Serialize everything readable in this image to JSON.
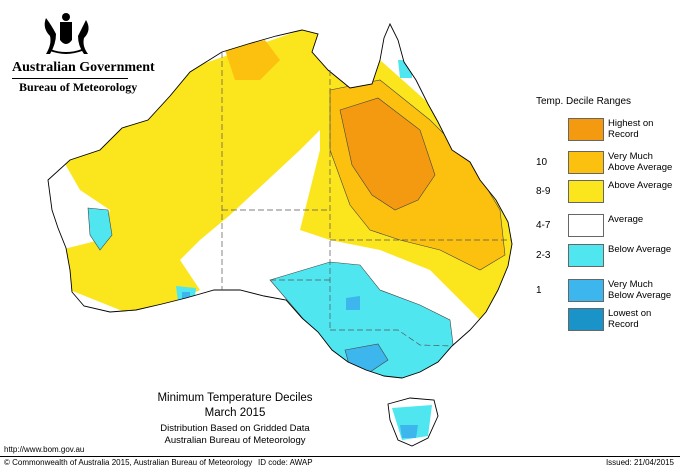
{
  "header": {
    "gov_title": "Australian Government",
    "bureau": "Bureau of Meteorology"
  },
  "legend": {
    "title": "Temp. Decile Ranges",
    "items": [
      {
        "label": "",
        "desc": "Highest on Record",
        "color": "#f39a10"
      },
      {
        "label": "10",
        "desc": "Very Much Above Average",
        "color": "#fbc10e"
      },
      {
        "label": "8-9",
        "desc": "Above Average",
        "color": "#fbe51c"
      },
      {
        "label": "4-7",
        "desc": "Average",
        "color": "#ffffff"
      },
      {
        "label": "2-3",
        "desc": "Below Average",
        "color": "#4fe6f0"
      },
      {
        "label": "1",
        "desc": "Very Much Below Average",
        "color": "#3cb6ec"
      },
      {
        "label": "",
        "desc": "Lowest on Record",
        "color": "#1a93c8"
      }
    ]
  },
  "caption": {
    "title": "Minimum Temperature Deciles",
    "date": "March 2015",
    "dist": "Distribution Based on Gridded Data",
    "bureau": "Australian Bureau of Meteorology"
  },
  "footer": {
    "url": "http://www.bom.gov.au",
    "copyright": "© Commonwealth of Australia 2015, Australian Bureau of Meteorology",
    "id_code": "ID code: AWAP",
    "issued": "Issued: 21/04/2015"
  }
}
